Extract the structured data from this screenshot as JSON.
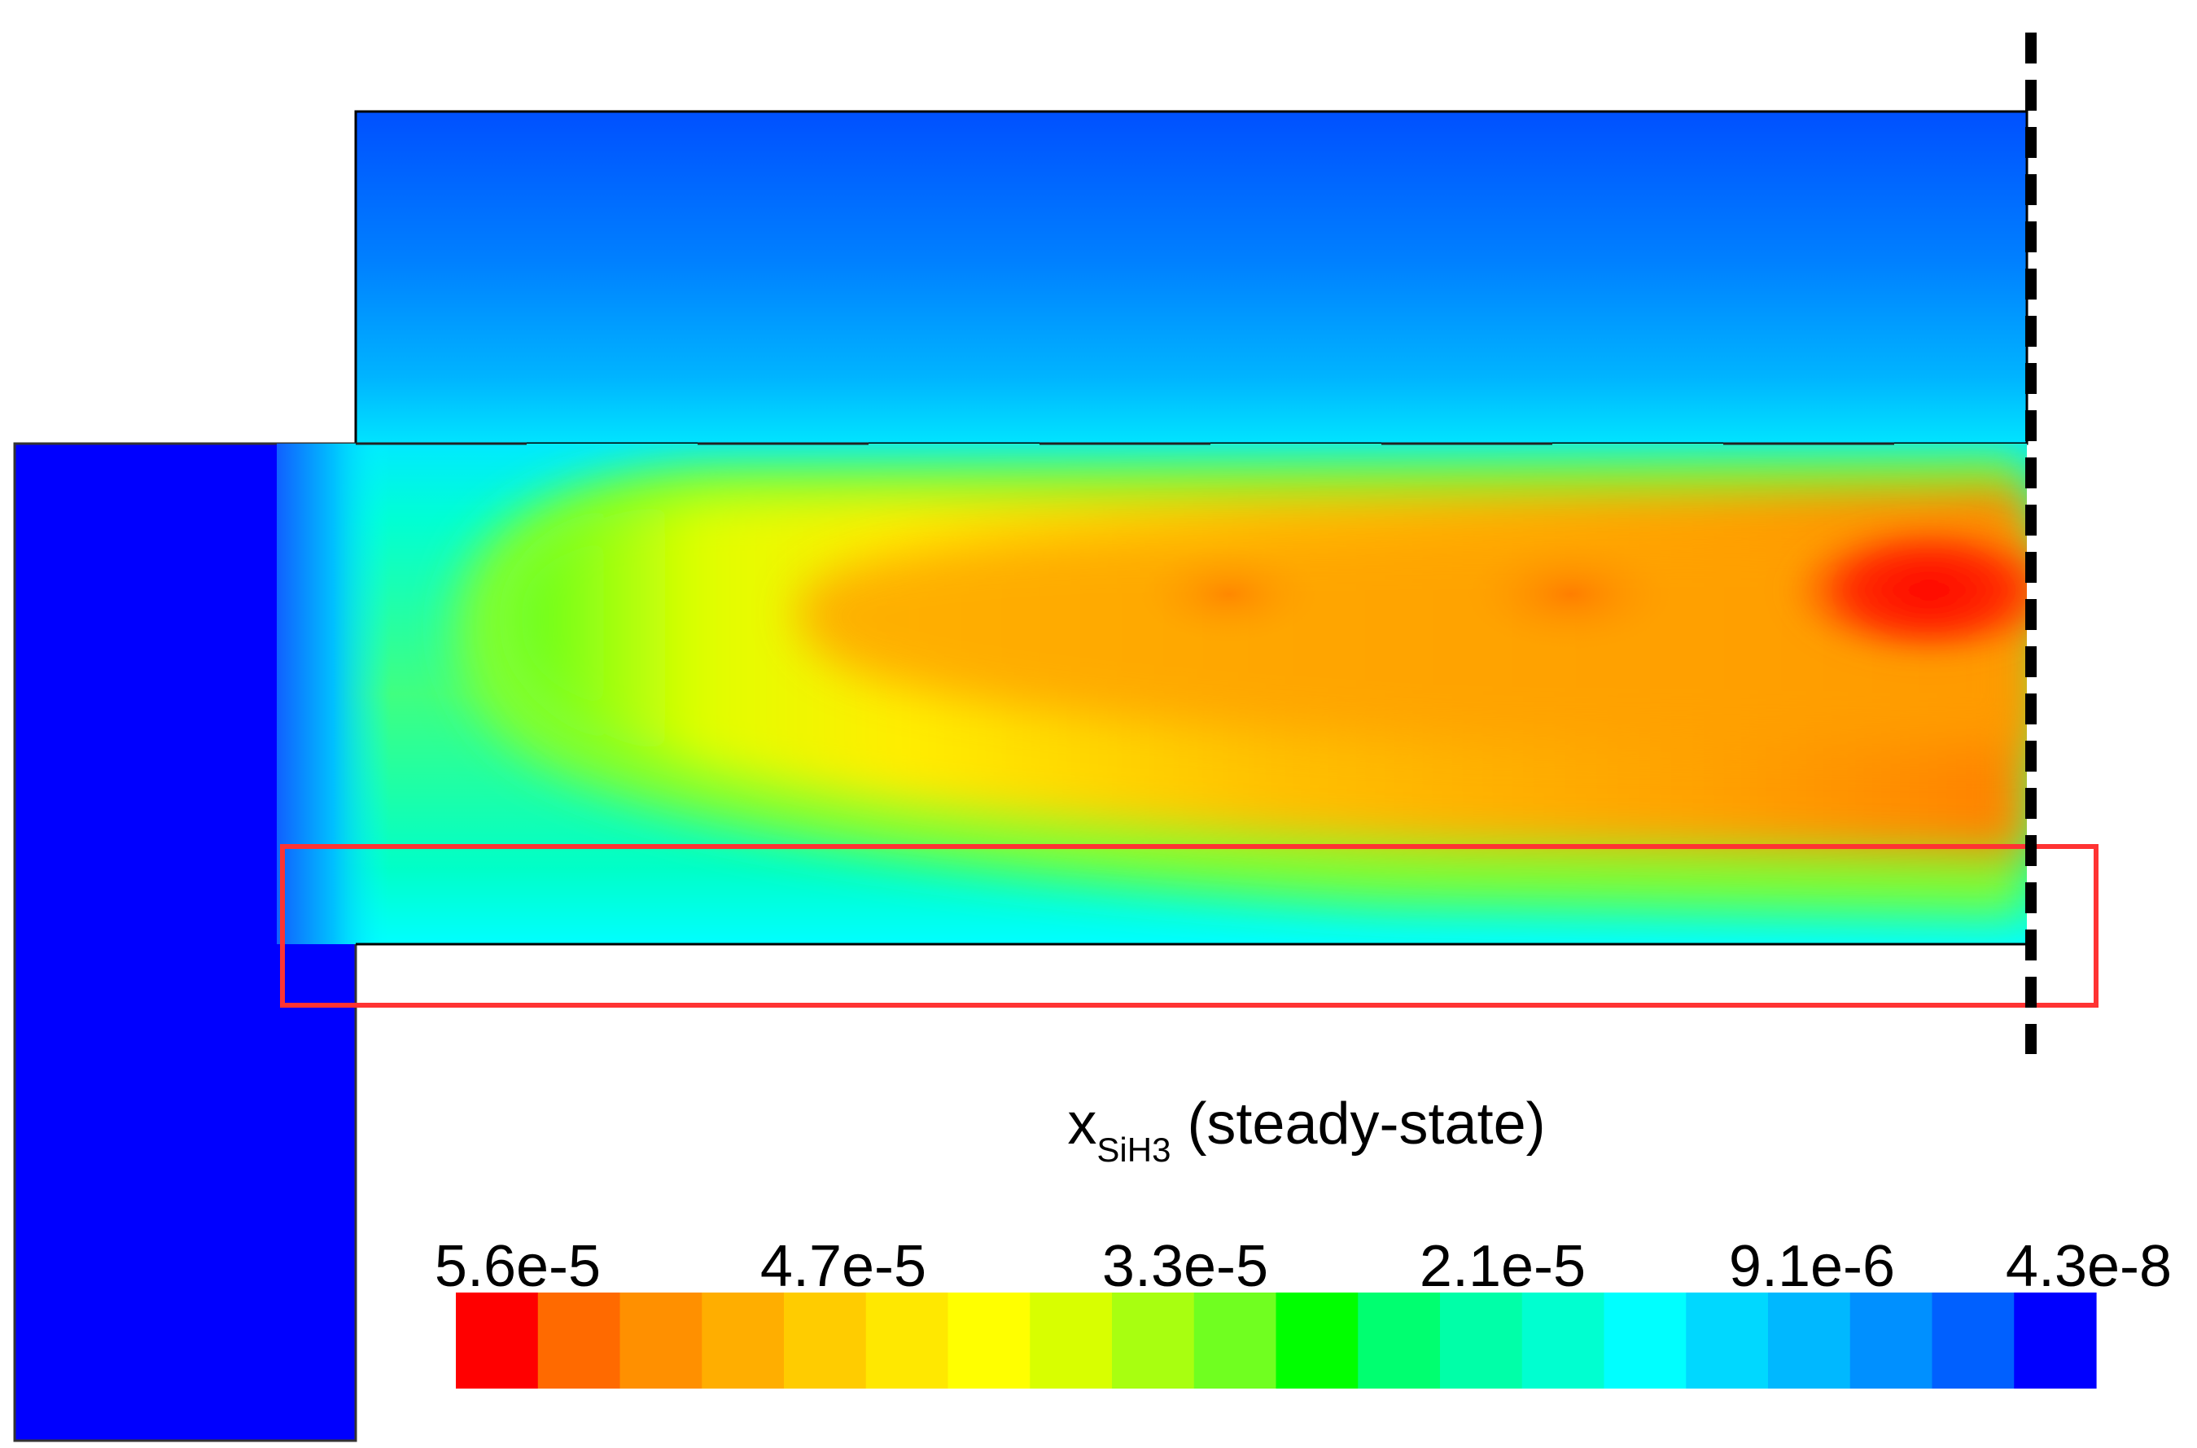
{
  "figure": {
    "variable_main": "x",
    "variable_subscript": "SiH3",
    "variable_suffix": " (steady-state)"
  },
  "colorbar": {
    "tick_labels": [
      "5.6e-5",
      "4.7e-5",
      "3.3e-5",
      "2.1e-5",
      "9.1e-6",
      "4.3e-8"
    ],
    "colors": [
      "#ff0000",
      "#ff6a00",
      "#ff9000",
      "#ffae00",
      "#ffcc00",
      "#ffe800",
      "#ffff00",
      "#d8ff00",
      "#a8ff10",
      "#70ff20",
      "#00ff00",
      "#00ff70",
      "#00ffa8",
      "#00ffd0",
      "#00ffff",
      "#00d8ff",
      "#00b8ff",
      "#0090ff",
      "#0060ff",
      "#0000ff"
    ],
    "order": "max-to-min"
  },
  "field": {
    "quantity": "SiH3 mole fraction",
    "max": 5.6e-05,
    "min": 4.3e-08,
    "peak_region": "right end of lower channel, near symmetry line"
  },
  "annotations": {
    "highlight_box_color": "#ff3333",
    "symmetry_line": "dashed black vertical line at right edge"
  }
}
